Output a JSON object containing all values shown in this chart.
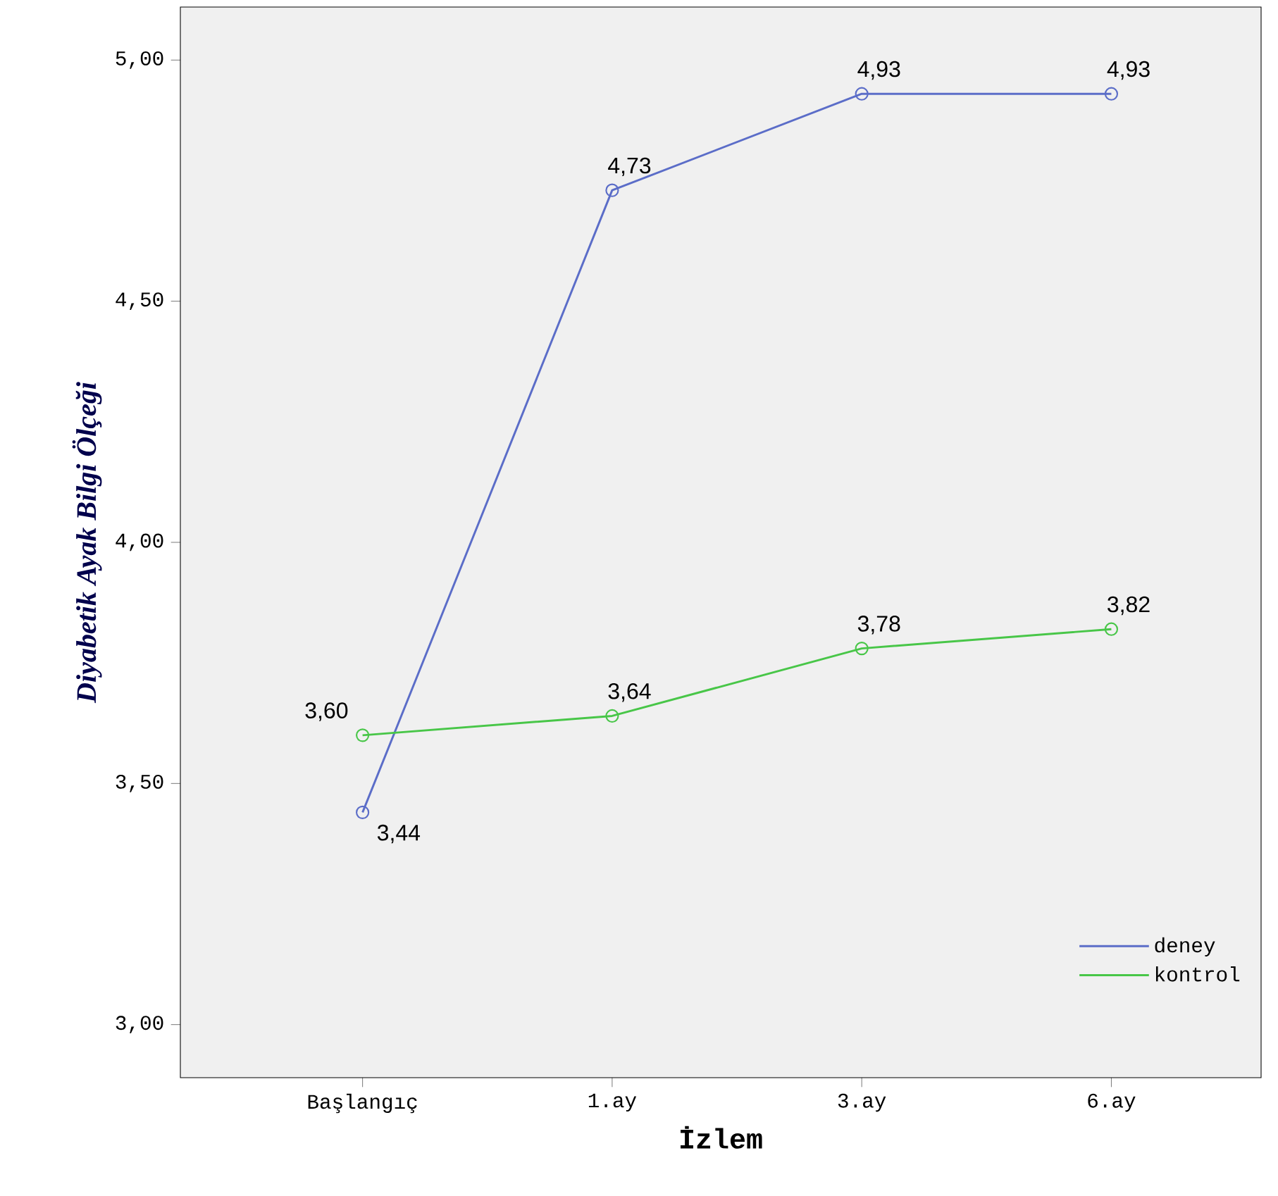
{
  "chart_data": {
    "type": "line",
    "xlabel": "İzlem",
    "ylabel": "Diyabetik Ayak Bilgi Ölçeği",
    "categories": [
      "Başlangıç",
      "1.ay",
      "3.ay",
      "6.ay"
    ],
    "series": [
      {
        "name": "deney",
        "color": "#5b6dc8",
        "values": [
          3.44,
          4.73,
          4.93,
          4.93
        ],
        "value_labels": [
          "3,44",
          "4,73",
          "4,93",
          "4,93"
        ]
      },
      {
        "name": "kontrol",
        "color": "#48c648",
        "values": [
          3.6,
          3.64,
          3.78,
          3.82
        ],
        "value_labels": [
          "3,60",
          "3,64",
          "3,78",
          "3,82"
        ]
      }
    ],
    "ylim": [
      2.89,
      5.11
    ],
    "yticks": [
      {
        "value": 3,
        "label": "3,00"
      },
      {
        "value": 3.5,
        "label": "3,50"
      },
      {
        "value": 4,
        "label": "4,00"
      },
      {
        "value": 4.5,
        "label": "4,50"
      },
      {
        "value": 5,
        "label": "5,00"
      }
    ],
    "grid": false,
    "legend": "bottom right",
    "marker": "circle",
    "line_style": "solid"
  }
}
